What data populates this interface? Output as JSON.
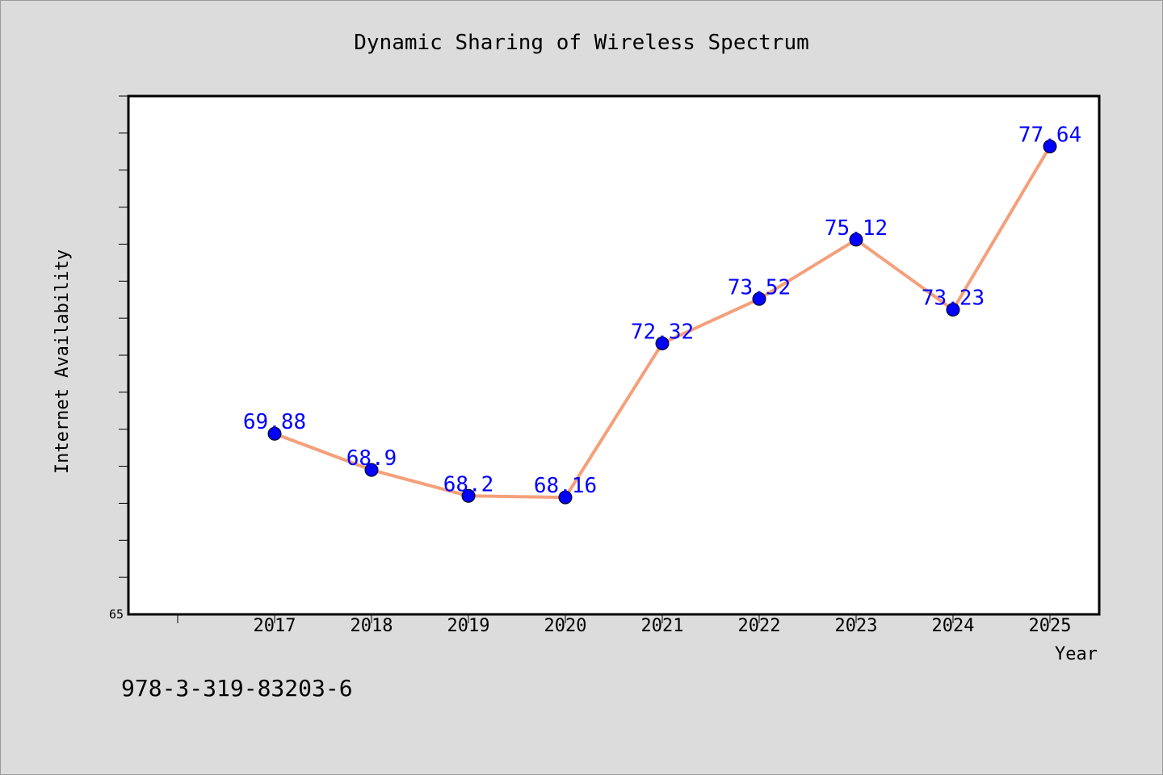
{
  "chart_data": {
    "type": "line",
    "title": "Dynamic Sharing of Wireless Spectrum",
    "xlabel": "Year",
    "ylabel": "Internet Availability",
    "categories": [
      "2017",
      "2018",
      "2019",
      "2020",
      "2021",
      "2022",
      "2023",
      "2024",
      "2025"
    ],
    "series": [
      {
        "values": [
          69.88,
          68.9,
          68.2,
          68.16,
          72.32,
          73.52,
          75.12,
          73.23,
          77.64
        ],
        "labels": [
          "69.88",
          "68.9",
          "68.2",
          "68.16",
          "72.32",
          "73.52",
          "75.12",
          "73.23",
          "77.64"
        ],
        "line_color": "#f4a07a",
        "marker_color": "#0000ff"
      }
    ],
    "ylim": [
      65,
      79
    ],
    "ytick_labels": [
      "65"
    ],
    "grid": false,
    "legend": "none"
  },
  "footer": {
    "isbn": "978-3-319-83203-6"
  }
}
